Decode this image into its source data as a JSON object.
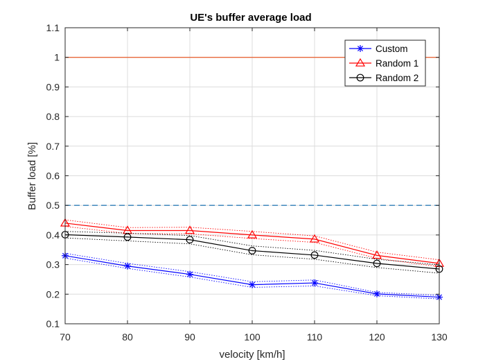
{
  "chart_data": {
    "type": "line",
    "title": "UE's buffer average load",
    "xlabel": "velocity [km/h]",
    "ylabel": "Buffer load [%]",
    "xlim": [
      70,
      130
    ],
    "ylim": [
      0.1,
      1.1
    ],
    "x": [
      70,
      80,
      90,
      100,
      110,
      120,
      130
    ],
    "xticks": [
      "70",
      "80",
      "90",
      "100",
      "110",
      "120",
      "130"
    ],
    "yticks": [
      "0.1",
      "0.2",
      "0.3",
      "0.4",
      "0.5",
      "0.6",
      "0.7",
      "0.8",
      "0.9",
      "1",
      "1.1"
    ],
    "grid": true,
    "legend_position": "top-right",
    "series": [
      {
        "name": "Custom",
        "color": "#0000ff",
        "marker": "asterisk",
        "values": [
          0.33,
          0.295,
          0.267,
          0.232,
          0.238,
          0.201,
          0.19
        ],
        "band_upper": [
          0.338,
          0.304,
          0.276,
          0.242,
          0.248,
          0.206,
          0.196
        ],
        "band_lower": [
          0.322,
          0.287,
          0.258,
          0.223,
          0.228,
          0.195,
          0.184
        ]
      },
      {
        "name": "Random 1",
        "color": "#ff0000",
        "marker": "triangle",
        "values": [
          0.44,
          0.415,
          0.415,
          0.4,
          0.386,
          0.331,
          0.304
        ],
        "band_upper": [
          0.451,
          0.425,
          0.426,
          0.412,
          0.397,
          0.342,
          0.316
        ],
        "band_lower": [
          0.429,
          0.405,
          0.404,
          0.388,
          0.375,
          0.321,
          0.293
        ]
      },
      {
        "name": "Random 2",
        "color": "#000000",
        "marker": "circle",
        "values": [
          0.401,
          0.393,
          0.384,
          0.347,
          0.332,
          0.304,
          0.285
        ],
        "band_upper": [
          0.412,
          0.406,
          0.398,
          0.363,
          0.348,
          0.318,
          0.299
        ],
        "band_lower": [
          0.39,
          0.38,
          0.37,
          0.333,
          0.318,
          0.29,
          0.271
        ]
      }
    ],
    "reference_lines": [
      {
        "value": 1.0,
        "color": "#e8693c",
        "style": "solid"
      },
      {
        "value": 0.5,
        "color": "#2f7fb8",
        "style": "dashed"
      }
    ]
  }
}
